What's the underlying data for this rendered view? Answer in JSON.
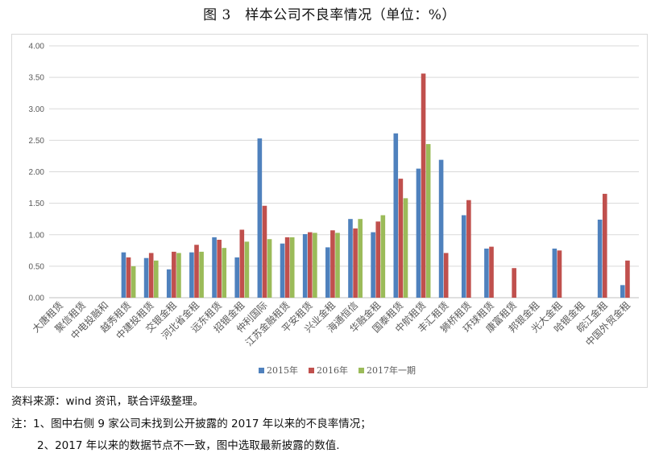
{
  "title": "图 3　样本公司不良率情况（单位：%）",
  "notes": {
    "source": "资料来源：wind 资讯，联合评级整理。",
    "note1": "注：1、图中右侧 9 家公司未找到公开披露的 2017 年以来的不良率情况；",
    "note2": "2、2017 年以来的数据节点不一致，图中选取最新披露的数值."
  },
  "chart_data": {
    "type": "bar",
    "title": "",
    "xlabel": "",
    "ylabel": "",
    "ylim": [
      0,
      4
    ],
    "y_ticks": [
      "0.00",
      "0.50",
      "1.00",
      "1.50",
      "2.00",
      "2.50",
      "3.00",
      "3.50",
      "4.00"
    ],
    "grid": true,
    "legend_position": "bottom",
    "categories": [
      "大唐租赁",
      "聚信租赁",
      "中电投融和",
      "越秀租赁",
      "中建投租赁",
      "交银金租",
      "河北省金租",
      "远东租赁",
      "招银金租",
      "仲利国际",
      "江苏金融租赁",
      "平安租赁",
      "兴业金租",
      "海通恒信",
      "华融金租",
      "国泰租赁",
      "中航租赁",
      "丰汇租赁",
      "狮桥租赁",
      "环球租赁",
      "康富租赁",
      "邦银金租",
      "光大金租",
      "哈银金租",
      "皖江金租",
      "中国外贸金租"
    ],
    "series": [
      {
        "name": "2015年",
        "color": "#4f81bd",
        "values": [
          null,
          null,
          null,
          0.72,
          0.63,
          0.45,
          0.72,
          0.96,
          0.64,
          2.53,
          0.86,
          1.01,
          0.8,
          1.25,
          1.04,
          2.61,
          2.05,
          2.19,
          1.31,
          0.78,
          null,
          null,
          0.78,
          null,
          1.24,
          0.2
        ]
      },
      {
        "name": "2016年",
        "color": "#c0504d",
        "values": [
          null,
          null,
          null,
          0.64,
          0.71,
          0.73,
          0.84,
          0.92,
          1.08,
          1.46,
          0.96,
          1.04,
          1.07,
          1.1,
          1.21,
          1.89,
          3.56,
          0.71,
          1.55,
          0.81,
          0.47,
          null,
          0.75,
          null,
          1.65,
          0.59
        ]
      },
      {
        "name": "2017年一期",
        "color": "#9bbb59",
        "values": [
          null,
          null,
          null,
          0.5,
          0.59,
          0.71,
          0.73,
          0.79,
          0.89,
          0.93,
          0.96,
          1.03,
          1.03,
          1.25,
          1.31,
          1.58,
          2.44,
          null,
          null,
          null,
          null,
          null,
          null,
          null,
          null,
          null
        ]
      }
    ]
  }
}
